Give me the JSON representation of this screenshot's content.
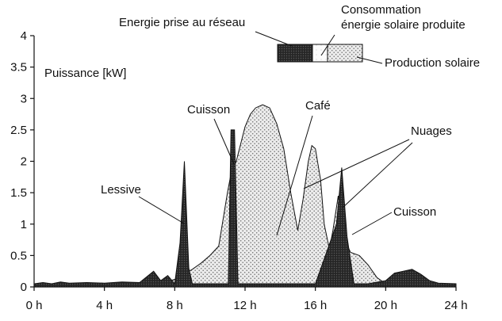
{
  "chart_data": {
    "type": "area",
    "title": "",
    "xlabel": "",
    "ylabel": "Puissance [kW]",
    "xlim": [
      0,
      24
    ],
    "ylim": [
      0,
      4
    ],
    "x_ticks": [
      0,
      4,
      8,
      12,
      16,
      20,
      24
    ],
    "x_tick_labels": [
      "0 h",
      "4 h",
      "8 h",
      "12 h",
      "16 h",
      "20 h",
      "24 h"
    ],
    "y_ticks": [
      0,
      0.5,
      1,
      1.5,
      2,
      2.5,
      3,
      3.5,
      4
    ],
    "y_tick_labels": [
      "0",
      "0.5",
      "1",
      "1.5",
      "2",
      "2.5",
      "3",
      "3.5",
      "4"
    ],
    "grid": false,
    "legend": {
      "placement": "top-right",
      "entries": [
        {
          "label": "Energie prise au réseau",
          "color": "#2a2a2a"
        },
        {
          "label": "Consommation énergie solaire produite",
          "label_lines": [
            "Consommation",
            "énergie solaire produite"
          ],
          "color": "#ffffff"
        },
        {
          "label": "Production solaire",
          "color": "#d8d8d8"
        }
      ]
    },
    "series": [
      {
        "name": "Production solaire",
        "color": "#d8d8d8",
        "x": [
          6.5,
          7.0,
          7.5,
          8.0,
          8.5,
          9.0,
          9.5,
          10.0,
          10.5,
          11.0,
          11.2,
          11.5,
          12.0,
          12.3,
          12.6,
          13.0,
          13.4,
          13.8,
          14.2,
          14.6,
          15.0,
          15.3,
          15.6,
          15.8,
          16.0,
          16.3,
          16.5,
          16.8,
          17.0,
          17.3,
          17.6,
          18.0,
          18.5,
          19.0,
          19.5,
          20.0,
          20.3
        ],
        "y": [
          0.0,
          0.03,
          0.08,
          0.12,
          0.2,
          0.28,
          0.38,
          0.5,
          0.65,
          1.5,
          1.8,
          2.0,
          2.55,
          2.75,
          2.85,
          2.9,
          2.85,
          2.6,
          2.2,
          1.5,
          0.9,
          1.4,
          2.0,
          2.25,
          2.2,
          1.7,
          1.0,
          0.6,
          0.9,
          1.45,
          0.8,
          0.55,
          0.5,
          0.35,
          0.15,
          0.05,
          0.0
        ]
      },
      {
        "name": "Energie prise au réseau",
        "color": "#2a2a2a",
        "x": [
          0.0,
          0.5,
          1.0,
          1.5,
          2.0,
          3.0,
          4.0,
          5.0,
          6.0,
          6.8,
          7.2,
          7.6,
          8.0,
          8.3,
          8.55,
          8.8,
          9.0,
          10.5,
          11.05,
          11.2,
          11.4,
          11.6,
          12.0,
          16.0,
          17.2,
          17.5,
          17.8,
          18.2,
          19.0,
          20.0,
          20.5,
          21.0,
          21.5,
          22.0,
          22.5,
          23.0,
          24.0
        ],
        "y": [
          0.05,
          0.07,
          0.05,
          0.08,
          0.06,
          0.07,
          0.06,
          0.08,
          0.07,
          0.25,
          0.1,
          0.18,
          0.05,
          0.7,
          2.0,
          0.3,
          0.05,
          0.05,
          0.05,
          2.5,
          2.5,
          0.05,
          0.05,
          0.05,
          1.0,
          1.9,
          0.8,
          0.05,
          0.05,
          0.1,
          0.22,
          0.25,
          0.28,
          0.2,
          0.1,
          0.06,
          0.05
        ]
      }
    ],
    "annotations": [
      {
        "text": "Lessive",
        "x": 8.5,
        "y": 1.05
      },
      {
        "text": "Cuisson",
        "x": 11.4,
        "y": 2.1
      },
      {
        "text": "Café",
        "x": 15.5,
        "y": 0.8
      },
      {
        "text": "Nuages",
        "x": 15.3,
        "y": 1.6,
        "x2": 17.3,
        "y2": 1.2
      },
      {
        "text": "Cuisson",
        "x": 18.0,
        "y": 0.8
      }
    ]
  }
}
